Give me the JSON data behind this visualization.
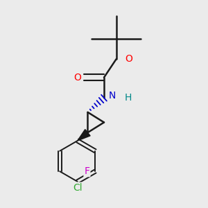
{
  "background_color": "#ebebeb",
  "bond_color": "#1a1a1a",
  "atom_colors": {
    "O": "#ff0000",
    "N": "#0000cc",
    "F": "#cc00cc",
    "Cl": "#33aa33",
    "H": "#008888",
    "C": "#1a1a1a"
  },
  "figsize": [
    3.0,
    3.0
  ],
  "dpi": 100
}
